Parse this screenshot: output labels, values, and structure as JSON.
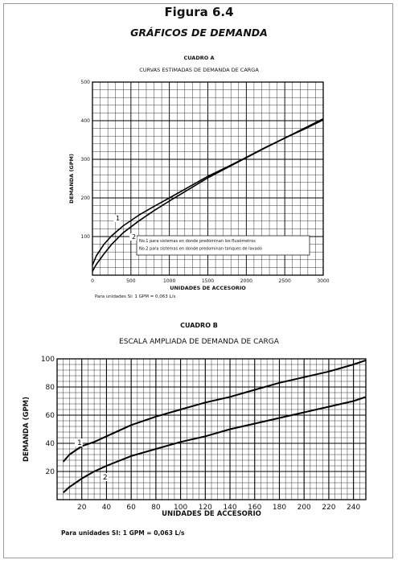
{
  "figure_label": "Figura 6.4",
  "title": "GRÁFICOS DE DEMANDA",
  "chart_data": [
    {
      "type": "line",
      "caption": "CUADRO A",
      "title": "CURVAS ESTIMADAS DE DEMANDA DE CARGA",
      "xlabel": "UNIDADES DE ACCESORIO",
      "ylabel": "DEMANDA (GPM)",
      "xlim": [
        0,
        3000
      ],
      "ylim": [
        0,
        500
      ],
      "xticks": [
        0,
        500,
        1000,
        1500,
        2000,
        2500,
        3000
      ],
      "yticks": [
        100,
        200,
        300,
        400,
        500
      ],
      "grid": true,
      "series": [
        {
          "name": "1",
          "points": [
            [
              0,
              26
            ],
            [
              50,
              50
            ],
            [
              150,
              80
            ],
            [
              250,
              102
            ],
            [
              400,
              128
            ],
            [
              600,
              155
            ],
            [
              800,
              178
            ],
            [
              1000,
              200
            ],
            [
              1250,
              228
            ],
            [
              1500,
              256
            ],
            [
              1750,
              280
            ],
            [
              2000,
              305
            ],
            [
              2250,
              331
            ],
            [
              2500,
              355
            ],
            [
              2750,
              378
            ],
            [
              3000,
              402
            ]
          ]
        },
        {
          "name": "2",
          "points": [
            [
              0,
              10
            ],
            [
              50,
              28
            ],
            [
              150,
              55
            ],
            [
              250,
              80
            ],
            [
              400,
              110
            ],
            [
              600,
              140
            ],
            [
              800,
              167
            ],
            [
              1000,
              192
            ],
            [
              1250,
              222
            ],
            [
              1500,
              252
            ],
            [
              1750,
              278
            ],
            [
              2000,
              304
            ],
            [
              2250,
              330
            ],
            [
              2500,
              355
            ],
            [
              2750,
              380
            ],
            [
              3000,
              405
            ]
          ]
        }
      ],
      "annotations": [
        "No.1 para sistemas en donde predominan los fluxómetros",
        "No.2 para sistemas en donde predominan tanques de lavado"
      ],
      "unit_note": "Para unidades SI: 1 GPM = 0,063 L/s"
    },
    {
      "type": "line",
      "caption": "CUADRO B",
      "title": "ESCALA AMPLIADA DE DEMANDA DE CARGA",
      "xlabel": "UNIDADES DE ACCESORIO",
      "ylabel": "DEMANDA (GPM)",
      "xlim": [
        0,
        250
      ],
      "ylim": [
        0,
        100
      ],
      "xticks": [
        20,
        40,
        60,
        80,
        100,
        120,
        140,
        160,
        180,
        200,
        220,
        240
      ],
      "yticks": [
        20,
        40,
        60,
        80,
        100
      ],
      "grid": true,
      "series": [
        {
          "name": "1",
          "points": [
            [
              5,
              27
            ],
            [
              10,
              32
            ],
            [
              20,
              38
            ],
            [
              30,
              41
            ],
            [
              40,
              45
            ],
            [
              60,
              53
            ],
            [
              80,
              59
            ],
            [
              100,
              64
            ],
            [
              120,
              69
            ],
            [
              140,
              73
            ],
            [
              160,
              78
            ],
            [
              180,
              83
            ],
            [
              200,
              87
            ],
            [
              220,
              91
            ],
            [
              240,
              96
            ],
            [
              250,
              99
            ]
          ]
        },
        {
          "name": "2",
          "points": [
            [
              5,
              5
            ],
            [
              10,
              9
            ],
            [
              20,
              15
            ],
            [
              30,
              20
            ],
            [
              40,
              24
            ],
            [
              60,
              31
            ],
            [
              80,
              36
            ],
            [
              100,
              41
            ],
            [
              120,
              45
            ],
            [
              140,
              50
            ],
            [
              160,
              54
            ],
            [
              180,
              58
            ],
            [
              200,
              62
            ],
            [
              220,
              66
            ],
            [
              240,
              70
            ],
            [
              250,
              73
            ]
          ]
        }
      ],
      "unit_note": "Para unidades SI: 1 GPM = 0,063 L/s"
    }
  ]
}
